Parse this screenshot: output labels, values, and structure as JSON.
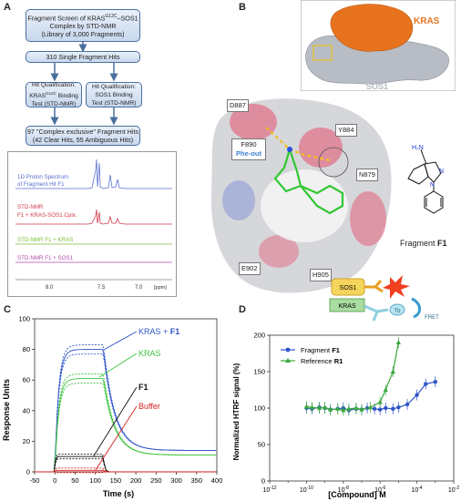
{
  "panelA": {
    "letter": "A",
    "box1": [
      "Fragment Screen of KRAS",
      "G12C",
      "–SOS1",
      "Complex by STD-NMR",
      "(Library of 3,000 Fragments)"
    ],
    "box2": "310 Single Fragment Hits",
    "box3": [
      "Hit Qualification:",
      "KRAS",
      "G12C",
      " Binding",
      "Test (STD-NMR)"
    ],
    "box4": [
      "Hit Qualification:",
      "SOS1 Binding",
      "Test (STD-NMR)"
    ],
    "box5": [
      "97 \"Complex exclusive\" Fragment Hits",
      "(42 Clear Hits, 55 Ambiguous Hits)"
    ],
    "nmr": {
      "spectrum_label": [
        "1D Proton Spectrum",
        "of Fragment Hit F1"
      ],
      "std1": [
        "STD-NMR",
        "F1 + KRAS-SOS1 Cplx."
      ],
      "std2": "STD-NMR F1 + KRAS",
      "std3": "STD-NMR F1 + SOS1",
      "ticks": [
        "8.0",
        "7.5",
        "7.0"
      ],
      "unit": "[ppm]",
      "colors": {
        "spectrum": "#5a6fd0",
        "std1": "#d03a4a",
        "std2": "#7bbf3a",
        "std3": "#b04aa8"
      }
    }
  },
  "panelB": {
    "letter": "B",
    "kras_label": "KRAS",
    "sos1_label": "SOS1",
    "residues": [
      "D887",
      "Y884",
      "F890",
      "Phe-out",
      "N879",
      "E902",
      "H905"
    ],
    "fragment_label": "Fragment ",
    "fragment_name": "F1",
    "amine": "H₂N",
    "N": "N",
    "colors": {
      "kras": "#e8731e",
      "sos1": "#b8bcc4"
    }
  },
  "panelC": {
    "letter": "C",
    "chart_data": {
      "type": "line",
      "xlabel": "Time (s)",
      "ylabel": "Response Units",
      "xlim": [
        -50,
        400
      ],
      "ylim": [
        0,
        100
      ],
      "xticks": [
        -50,
        0,
        50,
        100,
        150,
        200,
        250,
        300,
        350,
        400
      ],
      "yticks": [
        0,
        20,
        40,
        60,
        80,
        100
      ],
      "series": [
        {
          "name": "KRAS + F1",
          "color": "#2f54c8",
          "plateau": 80,
          "end": 14
        },
        {
          "name": "KRAS",
          "color": "#3fc43f",
          "plateau": 61,
          "end": 11
        },
        {
          "name": "F1",
          "color": "#111111",
          "plateau": 10,
          "end": 0
        },
        {
          "name": "Buffer",
          "color": "#d42020",
          "plateau": 1,
          "end": 0
        }
      ],
      "annotations": [
        "KRAS + ",
        "F1",
        "KRAS",
        "F1",
        "Buffer"
      ]
    }
  },
  "panelD": {
    "letter": "D",
    "chart_data": {
      "type": "line",
      "xlabel": "[Compound] M",
      "ylabel": "Normalized HTRF signal (%)",
      "xscale": "log",
      "xlim": [
        1e-12,
        0.01
      ],
      "ylim": [
        0,
        200
      ],
      "yticks": [
        0,
        50,
        100,
        150,
        200
      ],
      "xtick_exps": [
        -12,
        -10,
        -8,
        -6,
        -4,
        -2
      ],
      "series": [
        {
          "name": "Fragment F1",
          "color": "#2f54c8",
          "marker": "circle",
          "x": [
            1e-10,
            2e-10,
            5e-10,
            1e-09,
            2e-09,
            5e-09,
            1e-08,
            2e-08,
            5e-08,
            1e-07,
            2e-07,
            5e-07,
            1e-06,
            2e-06,
            5e-06,
            1e-05,
            3e-05,
            0.0001,
            0.0003,
            0.001
          ],
          "y": [
            100,
            99,
            101,
            100,
            98,
            99,
            100,
            97,
            99,
            98,
            100,
            99,
            98,
            100,
            99,
            101,
            105,
            118,
            133,
            136
          ]
        },
        {
          "name": "Reference R1",
          "color": "#3aa83a",
          "marker": "triangle",
          "x": [
            1e-10,
            2e-10,
            5e-10,
            1e-09,
            2e-09,
            5e-09,
            1e-08,
            2e-08,
            5e-08,
            1e-07,
            3e-07,
            1e-06,
            2e-06,
            5e-06,
            1e-05
          ],
          "y": [
            102,
            101,
            100,
            101,
            98,
            99,
            97,
            99,
            100,
            98,
            101,
            108,
            125,
            150,
            190
          ]
        }
      ],
      "legend": [
        "Fragment ",
        "F1",
        "Reference ",
        "R1"
      ]
    },
    "schematic": {
      "sos1": "SOS1",
      "kras": "KRAS",
      "tb": "Tb",
      "fret": "FRET"
    }
  }
}
